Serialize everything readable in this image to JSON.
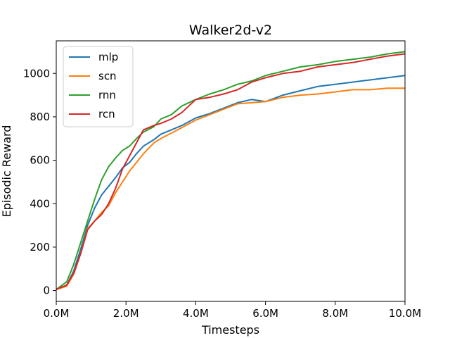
{
  "chart_data": {
    "type": "line",
    "title": "Walker2d-v2",
    "xlabel": "Timesteps",
    "ylabel": "Episodic Reward",
    "xlim": [
      0,
      10
    ],
    "ylim": [
      -50,
      1150
    ],
    "x_unit": "M",
    "x_ticks": [
      0,
      2,
      4,
      6,
      8,
      10
    ],
    "x_tick_labels": [
      "0.0M",
      "2.0M",
      "4.0M",
      "6.0M",
      "8.0M",
      "10.0M"
    ],
    "y_ticks": [
      0,
      200,
      400,
      600,
      800,
      1000
    ],
    "y_tick_labels": [
      "0",
      "200",
      "400",
      "600",
      "800",
      "1000"
    ],
    "grid": false,
    "legend_position": "top-left",
    "series": [
      {
        "name": "mlp",
        "color": "#1f77b4",
        "x": [
          0,
          0.3,
          0.5,
          0.7,
          0.9,
          1.1,
          1.3,
          1.5,
          1.7,
          1.9,
          2.1,
          2.3,
          2.5,
          2.8,
          3.0,
          3.3,
          3.6,
          4.0,
          4.4,
          4.8,
          5.2,
          5.6,
          6.0,
          6.5,
          7.0,
          7.5,
          8.0,
          8.5,
          9.0,
          9.5,
          10.0
        ],
        "y": [
          5,
          25,
          90,
          190,
          300,
          380,
          440,
          480,
          520,
          565,
          590,
          630,
          665,
          695,
          720,
          740,
          760,
          795,
          815,
          840,
          865,
          880,
          870,
          900,
          920,
          940,
          950,
          960,
          970,
          980,
          990
        ]
      },
      {
        "name": "scn",
        "color": "#ff7f0e",
        "x": [
          0,
          0.3,
          0.5,
          0.7,
          0.9,
          1.1,
          1.3,
          1.5,
          1.7,
          1.9,
          2.1,
          2.3,
          2.5,
          2.8,
          3.0,
          3.3,
          3.6,
          4.0,
          4.4,
          4.8,
          5.2,
          5.6,
          6.0,
          6.5,
          7.0,
          7.5,
          8.0,
          8.5,
          9.0,
          9.5,
          10.0
        ],
        "y": [
          5,
          20,
          75,
          170,
          285,
          320,
          360,
          390,
          450,
          500,
          550,
          590,
          630,
          680,
          700,
          725,
          750,
          785,
          810,
          835,
          860,
          865,
          870,
          890,
          900,
          905,
          915,
          925,
          925,
          932,
          932
        ]
      },
      {
        "name": "rnn",
        "color": "#2ca02c",
        "x": [
          0,
          0.3,
          0.5,
          0.7,
          0.9,
          1.1,
          1.3,
          1.5,
          1.7,
          1.9,
          2.1,
          2.3,
          2.5,
          2.8,
          3.0,
          3.3,
          3.6,
          4.0,
          4.4,
          4.8,
          5.2,
          5.6,
          6.0,
          6.5,
          7.0,
          7.5,
          8.0,
          8.5,
          9.0,
          9.5,
          10.0
        ],
        "y": [
          5,
          40,
          120,
          220,
          320,
          420,
          510,
          570,
          610,
          645,
          665,
          700,
          730,
          755,
          790,
          810,
          850,
          880,
          905,
          925,
          950,
          965,
          990,
          1010,
          1030,
          1040,
          1055,
          1065,
          1075,
          1090,
          1100
        ]
      },
      {
        "name": "rcn",
        "color": "#d62728",
        "x": [
          0,
          0.3,
          0.5,
          0.7,
          0.9,
          1.1,
          1.3,
          1.5,
          1.7,
          1.9,
          2.1,
          2.3,
          2.5,
          2.8,
          3.0,
          3.3,
          3.6,
          4.0,
          4.4,
          4.8,
          5.2,
          5.6,
          6.0,
          6.5,
          7.0,
          7.5,
          8.0,
          8.5,
          9.0,
          9.5,
          10.0
        ],
        "y": [
          5,
          25,
          80,
          170,
          280,
          320,
          350,
          400,
          470,
          560,
          620,
          680,
          740,
          760,
          770,
          790,
          820,
          880,
          890,
          905,
          925,
          960,
          980,
          1000,
          1010,
          1030,
          1040,
          1050,
          1065,
          1080,
          1090
        ]
      }
    ]
  }
}
